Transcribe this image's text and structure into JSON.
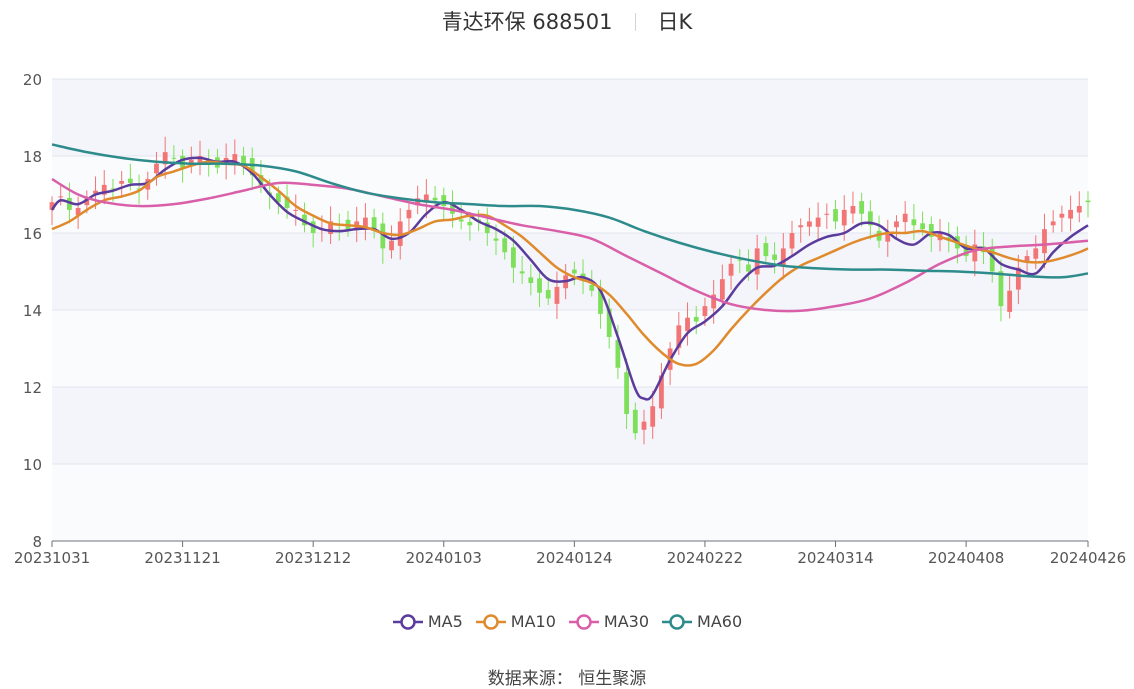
{
  "header": {
    "name": "青达环保 688501",
    "period": "日K"
  },
  "legend": [
    {
      "label": "MA5",
      "color": "#5b3b9c"
    },
    {
      "label": "MA10",
      "color": "#e08a2e"
    },
    {
      "label": "MA30",
      "color": "#d85fa8"
    },
    {
      "label": "MA60",
      "color": "#2e8b8b"
    }
  ],
  "source": {
    "label": "数据来源：",
    "value": "恒生聚源"
  },
  "chart_data": {
    "type": "candlestick",
    "title": "青达环保 688501",
    "subtitle": "日K",
    "ylim": [
      8,
      20
    ],
    "yticks": [
      8,
      10,
      12,
      14,
      16,
      18,
      20
    ],
    "xlim": [
      0,
      119
    ],
    "xticks": [
      {
        "label": "20231031",
        "at": 0
      },
      {
        "label": "20231121",
        "at": 15
      },
      {
        "label": "20231212",
        "at": 30
      },
      {
        "label": "20240103",
        "at": 45
      },
      {
        "label": "20240124",
        "at": 60
      },
      {
        "label": "20240222",
        "at": 75
      },
      {
        "label": "20240314",
        "at": 90
      },
      {
        "label": "20240408",
        "at": 105
      },
      {
        "label": "20240426",
        "at": 119
      }
    ],
    "grid": true,
    "candle_colors": {
      "up": "#f27474",
      "down": "#7ee05a"
    },
    "closes": [
      16.8,
      16.95,
      16.6,
      16.65,
      16.9,
      17.1,
      17.25,
      17.15,
      17.35,
      17.3,
      17.15,
      17.4,
      17.8,
      18.1,
      17.95,
      17.7,
      17.9,
      18.0,
      17.85,
      17.7,
      17.95,
      18.05,
      17.8,
      17.5,
      17.2,
      17.0,
      16.8,
      16.65,
      16.6,
      16.2,
      16.0,
      16.1,
      16.3,
      16.2,
      16.1,
      16.3,
      16.4,
      16.1,
      15.6,
      15.8,
      16.3,
      16.6,
      16.9,
      17.0,
      16.85,
      16.7,
      16.5,
      16.3,
      16.2,
      16.3,
      16.0,
      15.8,
      15.5,
      15.1,
      14.95,
      14.7,
      14.45,
      14.3,
      14.6,
      14.9,
      14.95,
      14.8,
      14.5,
      13.9,
      13.3,
      12.5,
      11.3,
      10.8,
      11.1,
      11.5,
      12.3,
      13.0,
      13.6,
      13.8,
      13.7,
      14.1,
      14.4,
      14.8,
      15.2,
      15.3,
      15.0,
      15.6,
      15.4,
      15.3,
      15.6,
      16.0,
      16.2,
      16.3,
      16.4,
      16.5,
      16.3,
      16.6,
      16.7,
      16.5,
      16.2,
      15.8,
      16.0,
      16.3,
      16.5,
      16.2,
      16.1,
      15.9,
      16.0,
      15.8,
      15.6,
      15.4,
      15.7,
      15.5,
      15.0,
      14.1,
      14.5,
      15.1,
      15.4,
      15.6,
      16.1,
      16.3,
      16.5,
      16.6,
      16.7,
      16.8
    ],
    "ma_knots": [
      {
        "name": "MA5",
        "points": [
          [
            0,
            16.6
          ],
          [
            1,
            16.85
          ],
          [
            3,
            16.75
          ],
          [
            5,
            17.0
          ],
          [
            7,
            17.1
          ],
          [
            9,
            17.25
          ],
          [
            11,
            17.3
          ],
          [
            13,
            17.65
          ],
          [
            15,
            17.9
          ],
          [
            17,
            17.95
          ],
          [
            19,
            17.85
          ],
          [
            21,
            17.85
          ],
          [
            23,
            17.55
          ],
          [
            25,
            17.0
          ],
          [
            27,
            16.55
          ],
          [
            29,
            16.3
          ],
          [
            31,
            16.1
          ],
          [
            33,
            16.05
          ],
          [
            35,
            16.1
          ],
          [
            37,
            16.1
          ],
          [
            39,
            15.85
          ],
          [
            41,
            16.0
          ],
          [
            43,
            16.5
          ],
          [
            45,
            16.8
          ],
          [
            47,
            16.6
          ],
          [
            49,
            16.3
          ],
          [
            51,
            16.1
          ],
          [
            53,
            15.8
          ],
          [
            55,
            15.3
          ],
          [
            57,
            14.8
          ],
          [
            59,
            14.75
          ],
          [
            61,
            14.85
          ],
          [
            63,
            14.5
          ],
          [
            65,
            13.3
          ],
          [
            67,
            11.95
          ],
          [
            68,
            11.7
          ],
          [
            69,
            11.8
          ],
          [
            71,
            12.7
          ],
          [
            73,
            13.4
          ],
          [
            75,
            13.7
          ],
          [
            77,
            14.1
          ],
          [
            79,
            14.7
          ],
          [
            81,
            15.1
          ],
          [
            83,
            15.15
          ],
          [
            85,
            15.4
          ],
          [
            87,
            15.7
          ],
          [
            89,
            15.9
          ],
          [
            91,
            16.0
          ],
          [
            93,
            16.25
          ],
          [
            95,
            16.2
          ],
          [
            97,
            15.85
          ],
          [
            99,
            15.7
          ],
          [
            101,
            16.0
          ],
          [
            103,
            15.95
          ],
          [
            105,
            15.6
          ],
          [
            107,
            15.6
          ],
          [
            109,
            15.2
          ],
          [
            111,
            15.05
          ],
          [
            113,
            14.95
          ],
          [
            115,
            15.5
          ],
          [
            117,
            15.9
          ],
          [
            119,
            16.2
          ]
        ]
      },
      {
        "name": "MA10",
        "points": [
          [
            0,
            16.1
          ],
          [
            2,
            16.3
          ],
          [
            4,
            16.6
          ],
          [
            6,
            16.85
          ],
          [
            8,
            16.95
          ],
          [
            10,
            17.1
          ],
          [
            12,
            17.45
          ],
          [
            14,
            17.6
          ],
          [
            16,
            17.75
          ],
          [
            18,
            17.85
          ],
          [
            20,
            17.8
          ],
          [
            22,
            17.75
          ],
          [
            24,
            17.45
          ],
          [
            26,
            17.1
          ],
          [
            28,
            16.7
          ],
          [
            30,
            16.45
          ],
          [
            32,
            16.25
          ],
          [
            34,
            16.2
          ],
          [
            36,
            16.15
          ],
          [
            38,
            16.0
          ],
          [
            40,
            15.95
          ],
          [
            42,
            16.1
          ],
          [
            44,
            16.3
          ],
          [
            46,
            16.35
          ],
          [
            48,
            16.45
          ],
          [
            50,
            16.45
          ],
          [
            52,
            16.2
          ],
          [
            54,
            15.9
          ],
          [
            56,
            15.5
          ],
          [
            58,
            15.1
          ],
          [
            60,
            14.85
          ],
          [
            62,
            14.7
          ],
          [
            64,
            14.4
          ],
          [
            66,
            13.9
          ],
          [
            68,
            13.35
          ],
          [
            70,
            12.9
          ],
          [
            72,
            12.6
          ],
          [
            74,
            12.6
          ],
          [
            76,
            12.95
          ],
          [
            78,
            13.5
          ],
          [
            80,
            14.0
          ],
          [
            82,
            14.45
          ],
          [
            84,
            14.85
          ],
          [
            86,
            15.15
          ],
          [
            88,
            15.35
          ],
          [
            90,
            15.55
          ],
          [
            92,
            15.75
          ],
          [
            94,
            15.9
          ],
          [
            96,
            16.0
          ],
          [
            98,
            16.0
          ],
          [
            100,
            16.05
          ],
          [
            102,
            15.9
          ],
          [
            104,
            15.75
          ],
          [
            106,
            15.6
          ],
          [
            108,
            15.5
          ],
          [
            110,
            15.35
          ],
          [
            112,
            15.25
          ],
          [
            114,
            15.25
          ],
          [
            116,
            15.35
          ],
          [
            118,
            15.5
          ],
          [
            119,
            15.6
          ]
        ]
      },
      {
        "name": "MA30",
        "points": [
          [
            0,
            17.4
          ],
          [
            3,
            17.0
          ],
          [
            6,
            16.8
          ],
          [
            10,
            16.7
          ],
          [
            14,
            16.75
          ],
          [
            18,
            16.9
          ],
          [
            22,
            17.1
          ],
          [
            26,
            17.3
          ],
          [
            30,
            17.25
          ],
          [
            34,
            17.15
          ],
          [
            38,
            16.95
          ],
          [
            42,
            16.75
          ],
          [
            46,
            16.6
          ],
          [
            50,
            16.4
          ],
          [
            54,
            16.2
          ],
          [
            58,
            16.05
          ],
          [
            62,
            15.85
          ],
          [
            66,
            15.4
          ],
          [
            70,
            14.95
          ],
          [
            74,
            14.5
          ],
          [
            78,
            14.15
          ],
          [
            82,
            14.0
          ],
          [
            86,
            13.98
          ],
          [
            90,
            14.1
          ],
          [
            94,
            14.3
          ],
          [
            98,
            14.7
          ],
          [
            102,
            15.2
          ],
          [
            106,
            15.55
          ],
          [
            110,
            15.65
          ],
          [
            114,
            15.7
          ],
          [
            119,
            15.8
          ]
        ]
      },
      {
        "name": "MA60",
        "points": [
          [
            0,
            18.3
          ],
          [
            4,
            18.1
          ],
          [
            8,
            17.95
          ],
          [
            12,
            17.85
          ],
          [
            16,
            17.8
          ],
          [
            20,
            17.8
          ],
          [
            24,
            17.75
          ],
          [
            28,
            17.6
          ],
          [
            32,
            17.3
          ],
          [
            36,
            17.05
          ],
          [
            40,
            16.9
          ],
          [
            44,
            16.8
          ],
          [
            48,
            16.75
          ],
          [
            52,
            16.7
          ],
          [
            56,
            16.7
          ],
          [
            60,
            16.6
          ],
          [
            64,
            16.4
          ],
          [
            68,
            16.05
          ],
          [
            72,
            15.75
          ],
          [
            76,
            15.5
          ],
          [
            80,
            15.3
          ],
          [
            84,
            15.15
          ],
          [
            88,
            15.08
          ],
          [
            92,
            15.05
          ],
          [
            96,
            15.05
          ],
          [
            100,
            15.02
          ],
          [
            104,
            15.0
          ],
          [
            108,
            14.95
          ],
          [
            112,
            14.88
          ],
          [
            116,
            14.85
          ],
          [
            119,
            14.95
          ]
        ]
      }
    ],
    "series": [
      {
        "name": "MA5",
        "color": "#5b3b9c"
      },
      {
        "name": "MA10",
        "color": "#e08a2e"
      },
      {
        "name": "MA30",
        "color": "#d85fa8"
      },
      {
        "name": "MA60",
        "color": "#2e8b8b"
      }
    ]
  }
}
